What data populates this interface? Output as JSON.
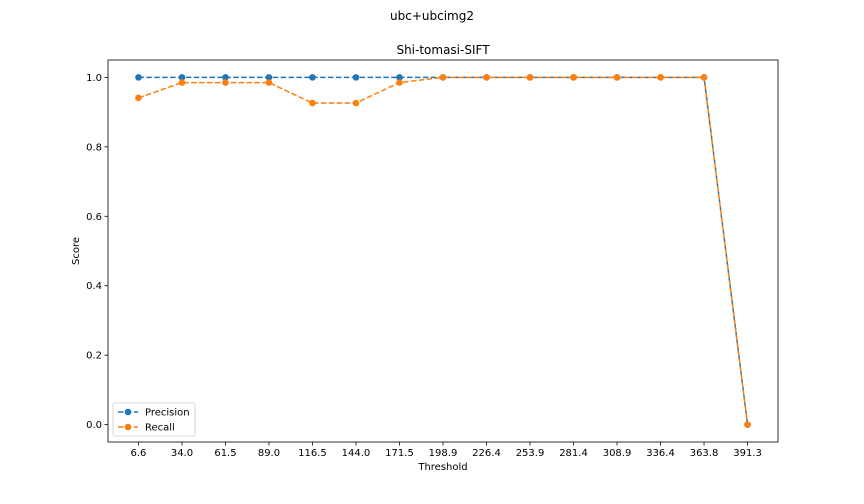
{
  "figure": {
    "suptitle": "ubc+ubcimg2"
  },
  "chart_data": {
    "type": "line",
    "title": "Shi-tomasi-SIFT",
    "xlabel": "Threshold",
    "ylabel": "Score",
    "categories": [
      "6.6",
      "34.0",
      "61.5",
      "89.0",
      "116.5",
      "144.0",
      "171.5",
      "198.9",
      "226.4",
      "253.9",
      "281.4",
      "308.9",
      "336.4",
      "363.8",
      "391.3"
    ],
    "ylim": [
      -0.05,
      1.05
    ],
    "yticks": [
      "0.0",
      "0.2",
      "0.4",
      "0.6",
      "0.8",
      "1.0"
    ],
    "grid": false,
    "legend_position": "lower-left",
    "series": [
      {
        "name": "Precision",
        "color": "#1f77b4",
        "linestyle": "dashed",
        "marker": "circle",
        "values": [
          1.0,
          1.0,
          1.0,
          1.0,
          1.0,
          1.0,
          1.0,
          1.0,
          1.0,
          1.0,
          1.0,
          1.0,
          1.0,
          1.0,
          0.0
        ]
      },
      {
        "name": "Recall",
        "color": "#ff7f0e",
        "linestyle": "dashed",
        "marker": "circle",
        "values": [
          0.941,
          0.985,
          0.985,
          0.985,
          0.926,
          0.926,
          0.985,
          1.0,
          1.0,
          1.0,
          1.0,
          1.0,
          1.0,
          1.0,
          0.0
        ]
      }
    ]
  }
}
